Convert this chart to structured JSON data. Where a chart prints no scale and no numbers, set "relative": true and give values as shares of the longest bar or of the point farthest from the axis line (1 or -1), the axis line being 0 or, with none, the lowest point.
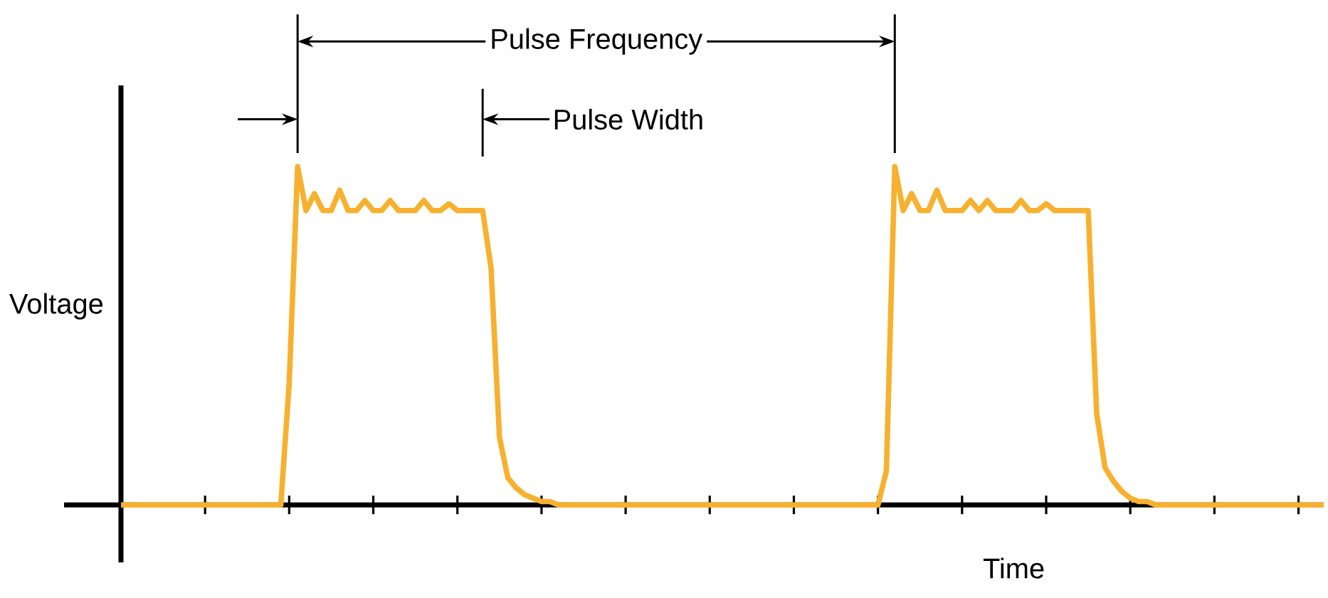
{
  "chart_data": {
    "type": "line",
    "relative": true,
    "xlabel": "Time",
    "ylabel": "Voltage",
    "annotations": [
      "Pulse Frequency",
      "Pulse Width"
    ],
    "categories": [
      null,
      null,
      null,
      null,
      null,
      null,
      null,
      null,
      null,
      null,
      null,
      null,
      null,
      null,
      null,
      null,
      null,
      null,
      null,
      null,
      null,
      null,
      null,
      null,
      null,
      null,
      null,
      null,
      null,
      null,
      null,
      null,
      null,
      null,
      null,
      null,
      null,
      null,
      null,
      null,
      null,
      null,
      null,
      null,
      null,
      null,
      null,
      null,
      null,
      null,
      null,
      null,
      null,
      null,
      null,
      null,
      null,
      null,
      null,
      null,
      null,
      null,
      null,
      null,
      null,
      null,
      null,
      null,
      null,
      null,
      null,
      null,
      null,
      null,
      null,
      null,
      null,
      null,
      null,
      null,
      null,
      null,
      null,
      null,
      null,
      null,
      null,
      null,
      null,
      null,
      null,
      null,
      null,
      null,
      null,
      null,
      null,
      null,
      null,
      null,
      null,
      null,
      null,
      null,
      null,
      null,
      null,
      null,
      null,
      null,
      null,
      null,
      null,
      null,
      null,
      null,
      null,
      null,
      null,
      null,
      null,
      null,
      null,
      null,
      null,
      null,
      null,
      null,
      null,
      null,
      null,
      null,
      null,
      null,
      null,
      null,
      null,
      null,
      null,
      null,
      null,
      null,
      null,
      null
    ],
    "series": [
      {
        "color": "#f7b12f",
        "values": [
          0,
          0,
          0,
          0,
          0,
          0,
          0,
          0,
          0,
          0,
          0,
          0,
          0,
          0,
          0,
          0,
          0,
          0,
          0,
          0,
          0.36,
          1,
          0.87,
          0.92,
          0.87,
          0.87,
          0.93,
          0.87,
          0.87,
          0.9,
          0.87,
          0.87,
          0.9,
          0.87,
          0.87,
          0.87,
          0.9,
          0.87,
          0.87,
          0.89,
          0.87,
          0.87,
          0.87,
          0.87,
          0.7,
          0.2,
          0.08,
          0.05,
          0.03,
          0.02,
          0.01,
          0.01,
          0,
          0,
          0,
          0,
          0,
          0,
          0,
          0,
          0,
          0,
          0,
          0,
          0,
          0,
          0,
          0,
          0,
          0,
          0,
          0,
          0,
          0,
          0,
          0,
          0,
          0,
          0,
          0,
          0,
          0,
          0,
          0,
          0,
          0,
          0,
          0,
          0,
          0,
          0,
          0.1,
          1,
          0.87,
          0.92,
          0.87,
          0.87,
          0.93,
          0.87,
          0.87,
          0.87,
          0.9,
          0.87,
          0.9,
          0.87,
          0.87,
          0.87,
          0.9,
          0.87,
          0.87,
          0.89,
          0.87,
          0.87,
          0.87,
          0.87,
          0.87,
          0.27,
          0.11,
          0.07,
          0.04,
          0.02,
          0.01,
          0.01,
          0,
          0,
          0,
          0,
          0,
          0,
          0,
          0,
          0,
          0,
          0,
          0,
          0,
          0,
          0,
          0,
          0,
          0,
          0,
          0,
          0
        ]
      }
    ]
  }
}
